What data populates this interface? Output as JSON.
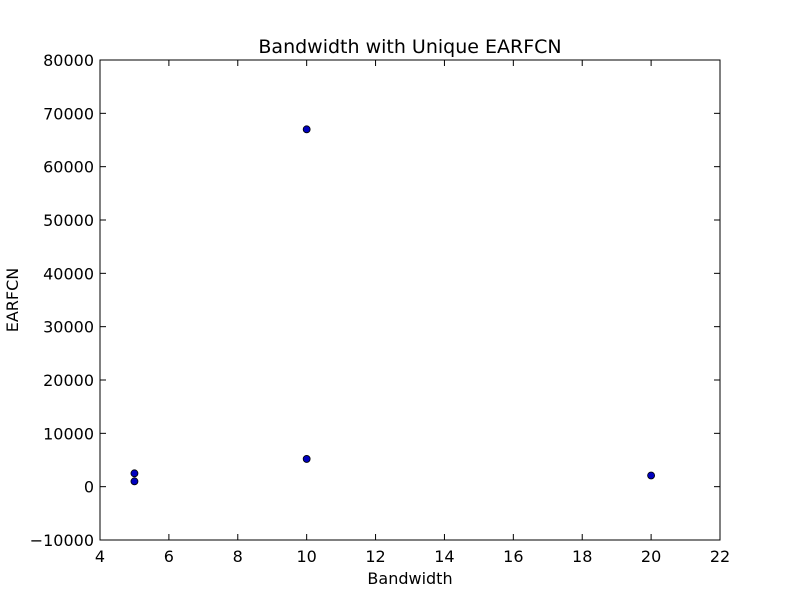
{
  "chart_data": {
    "type": "scatter",
    "title": "Bandwidth with Unique EARFCN",
    "xlabel": "Bandwidth",
    "ylabel": "EARFCN",
    "xlim": [
      4,
      22
    ],
    "ylim": [
      -10000,
      80000
    ],
    "xticks": [
      4,
      6,
      8,
      10,
      12,
      14,
      16,
      18,
      20,
      22
    ],
    "yticks": [
      -10000,
      0,
      10000,
      20000,
      30000,
      40000,
      50000,
      60000,
      70000,
      80000
    ],
    "xtick_labels": [
      "4",
      "6",
      "8",
      "10",
      "12",
      "14",
      "16",
      "18",
      "20",
      "22"
    ],
    "ytick_labels": [
      "−10000",
      "0",
      "10000",
      "20000",
      "30000",
      "40000",
      "50000",
      "60000",
      "70000",
      "80000"
    ],
    "grid": false,
    "series": [
      {
        "color": "#0000bf",
        "points": [
          {
            "x": 5,
            "y": 1000
          },
          {
            "x": 5,
            "y": 2500
          },
          {
            "x": 10,
            "y": 5200
          },
          {
            "x": 10,
            "y": 67000
          },
          {
            "x": 20,
            "y": 2100
          }
        ]
      }
    ]
  }
}
